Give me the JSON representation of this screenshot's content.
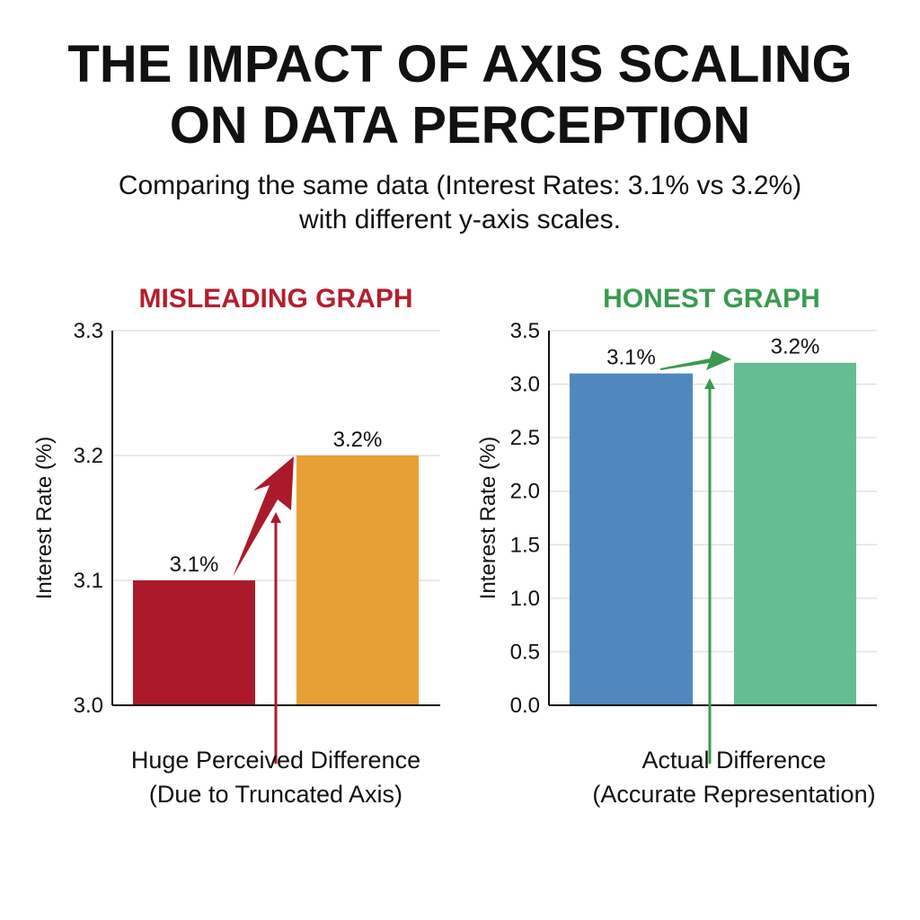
{
  "title_lines": [
    "THE IMPACT OF AXIS SCALING",
    "ON DATA PERCEPTION"
  ],
  "subtitle_lines": [
    "Comparing the same data (Interest Rates: 3.1% vs 3.2%)",
    "with different y-axis scales."
  ],
  "chart_data": [
    {
      "type": "bar",
      "title": "MISLEADING GRAPH",
      "title_color": "#b31f2d",
      "ylabel": "Interest Rate (%)",
      "ylim": [
        3.0,
        3.3
      ],
      "yticks": [
        "3.0",
        "3.1",
        "3.2",
        "3.3"
      ],
      "grid": true,
      "values": [
        3.1,
        3.2
      ],
      "data_labels": [
        "3.1%",
        "3.2%"
      ],
      "colors": [
        "#ab1a2a",
        "#e6a035"
      ],
      "annotation_lines": [
        "Huge Perceived Difference",
        "(Due to Truncated Axis)"
      ],
      "arrow_color": "#ab1a2a"
    },
    {
      "type": "bar",
      "title": "HONEST GRAPH",
      "title_color": "#3a9a4f",
      "ylabel": "Interest Rate (%)",
      "ylim": [
        0.0,
        3.5
      ],
      "yticks": [
        "0.0",
        "0.5",
        "1.0",
        "1.5",
        "2.0",
        "2.5",
        "3.0",
        "3.5"
      ],
      "grid": true,
      "values": [
        3.1,
        3.2
      ],
      "data_labels": [
        "3.1%",
        "3.2%"
      ],
      "colors": [
        "#4f88bf",
        "#66bd93"
      ],
      "annotation_lines": [
        "Actual Difference",
        "(Accurate Representation)"
      ],
      "arrow_color": "#3a9a4f"
    }
  ]
}
